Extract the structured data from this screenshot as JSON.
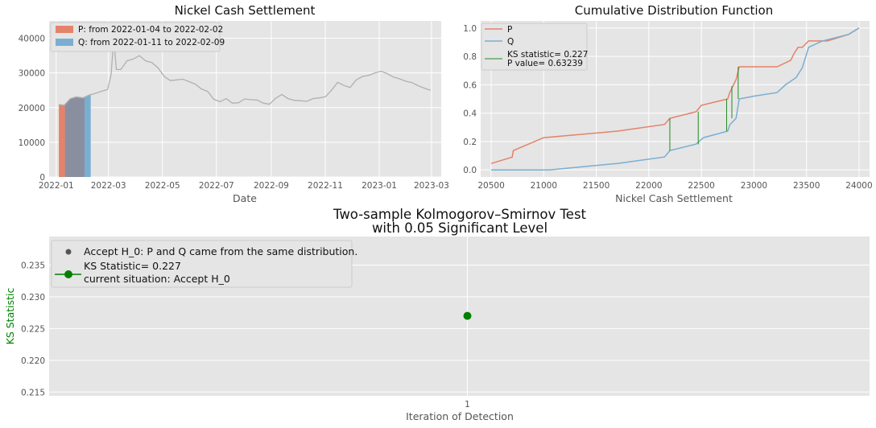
{
  "colors": {
    "P": "#e5826a",
    "Q": "#7aaed1",
    "overlap": "#8a8fa0",
    "price": "#b0b0b0",
    "ks": "#228b22",
    "green": "#008000",
    "bg": "#e5e5e5"
  },
  "chart_data": [
    {
      "type": "line",
      "title": "Nickel Cash Settlement",
      "xlabel": "Date",
      "ylabel": "",
      "ylim": [
        0,
        45000
      ],
      "yticks": [
        "0",
        "10000",
        "20000",
        "30000",
        "40000"
      ],
      "xticks": [
        "2022-01",
        "2022-03",
        "2022-05",
        "2022-07",
        "2022-09",
        "2022-11",
        "2023-01",
        "2023-03"
      ],
      "legend": [
        "P: from 2022-01-04 to 2022-02-02",
        "Q: from 2022-01-11 to 2022-02-09"
      ],
      "legend_position": "top-left",
      "bars": {
        "P": [
          "2022-01-04",
          "2022-02-02"
        ],
        "Q": [
          "2022-01-11",
          "2022-02-09"
        ]
      },
      "series": [
        {
          "x": [
            "2022-01-04",
            "2022-01-10",
            "2022-01-17",
            "2022-01-24",
            "2022-01-31",
            "2022-02-07",
            "2022-02-14",
            "2022-02-21",
            "2022-02-28",
            "2022-03-04",
            "2022-03-07",
            "2022-03-10",
            "2022-03-15",
            "2022-03-22",
            "2022-03-29",
            "2022-04-05",
            "2022-04-12",
            "2022-04-19",
            "2022-04-26",
            "2022-05-03",
            "2022-05-10",
            "2022-05-17",
            "2022-05-24",
            "2022-05-31",
            "2022-06-07",
            "2022-06-14",
            "2022-06-21",
            "2022-06-28",
            "2022-07-05",
            "2022-07-12",
            "2022-07-19",
            "2022-07-26",
            "2022-08-02",
            "2022-08-09",
            "2022-08-16",
            "2022-08-23",
            "2022-08-30",
            "2022-09-06",
            "2022-09-13",
            "2022-09-20",
            "2022-09-27",
            "2022-10-04",
            "2022-10-11",
            "2022-10-18",
            "2022-10-25",
            "2022-11-01",
            "2022-11-08",
            "2022-11-15",
            "2022-11-22",
            "2022-11-29",
            "2022-12-06",
            "2022-12-13",
            "2022-12-20",
            "2022-12-27",
            "2023-01-03",
            "2023-01-10",
            "2023-01-17",
            "2023-01-24",
            "2023-01-31",
            "2023-02-07",
            "2023-02-14",
            "2023-02-21",
            "2023-02-28"
          ],
          "y": [
            20900,
            20700,
            22600,
            23100,
            22800,
            23600,
            24100,
            24700,
            25200,
            29500,
            40000,
            31000,
            31000,
            33500,
            34000,
            35000,
            33500,
            33000,
            31500,
            29000,
            27800,
            28000,
            28200,
            27500,
            26800,
            25400,
            24700,
            22400,
            21700,
            22600,
            21300,
            21400,
            22500,
            22300,
            22200,
            21300,
            21000,
            22700,
            23800,
            22600,
            22100,
            22000,
            21800,
            22600,
            22800,
            23100,
            25000,
            27300,
            26400,
            25800,
            28000,
            29000,
            29300,
            30000,
            30500,
            29800,
            28800,
            28300,
            27600,
            27200,
            26300,
            25600,
            25000
          ]
        }
      ]
    },
    {
      "type": "line",
      "title": "Cumulative Distribution Function",
      "xlabel": "Nickel Cash Settlement",
      "ylabel": "",
      "xlim": [
        20400,
        24100
      ],
      "ylim": [
        -0.05,
        1.05
      ],
      "xticks": [
        "20500",
        "21000",
        "21500",
        "22000",
        "22500",
        "23000",
        "23500",
        "24000"
      ],
      "yticks": [
        "0.0",
        "0.2",
        "0.4",
        "0.6",
        "0.8",
        "1.0"
      ],
      "legend": [
        "P",
        "Q",
        "KS statistic= 0.227",
        "P value= 0.63239"
      ],
      "legend_position": "top-left",
      "series": [
        {
          "name": "P",
          "x": [
            20500,
            20700,
            20710,
            21000,
            21700,
            22150,
            22200,
            22450,
            22500,
            22750,
            22770,
            22800,
            22830,
            22860,
            23000,
            23220,
            23350,
            23380,
            23420,
            23460,
            23520,
            23700,
            23900,
            24000
          ],
          "y": [
            0.045,
            0.09,
            0.136,
            0.227,
            0.273,
            0.32,
            0.364,
            0.41,
            0.455,
            0.5,
            0.546,
            0.591,
            0.636,
            0.727,
            0.727,
            0.727,
            0.773,
            0.818,
            0.864,
            0.864,
            0.909,
            0.909,
            0.955,
            1.0
          ]
        },
        {
          "name": "Q",
          "x": [
            20500,
            21050,
            21700,
            22150,
            22200,
            22450,
            22520,
            22750,
            22770,
            22830,
            22860,
            23000,
            23220,
            23300,
            23400,
            23460,
            23520,
            23650,
            23900,
            24000
          ],
          "y": [
            0.0,
            0.0,
            0.045,
            0.091,
            0.136,
            0.182,
            0.227,
            0.273,
            0.318,
            0.364,
            0.5,
            0.52,
            0.545,
            0.6,
            0.65,
            0.72,
            0.864,
            0.909,
            0.955,
            1.0
          ]
        }
      ],
      "ks_lines": [
        {
          "x": 22200,
          "y0": 0.136,
          "y1": 0.364
        },
        {
          "x": 22470,
          "y0": 0.18,
          "y1": 0.41
        },
        {
          "x": 22740,
          "y0": 0.273,
          "y1": 0.5
        },
        {
          "x": 22790,
          "y0": 0.364,
          "y1": 0.591
        },
        {
          "x": 22850,
          "y0": 0.5,
          "y1": 0.727
        }
      ],
      "ks_statistic": 0.227,
      "p_value": 0.63239
    },
    {
      "type": "scatter",
      "title": "Two-sample Kolmogorov–Smirnov Test",
      "subtitle": "with 0.05 Significant Level",
      "xlabel": "Iteration of Detection",
      "ylabel": "KS Statistic",
      "ylim": [
        0.2144,
        0.2395
      ],
      "xticks": [
        "1"
      ],
      "yticks": [
        "0.215",
        "0.220",
        "0.225",
        "0.230",
        "0.235"
      ],
      "legend": [
        "Accept H_0: P and Q came from the same distribution.",
        "KS Statistic= 0.227",
        "current situation: Accept H_0"
      ],
      "legend_position": "top-left",
      "points": [
        {
          "x": 1,
          "y": 0.227
        }
      ]
    }
  ]
}
